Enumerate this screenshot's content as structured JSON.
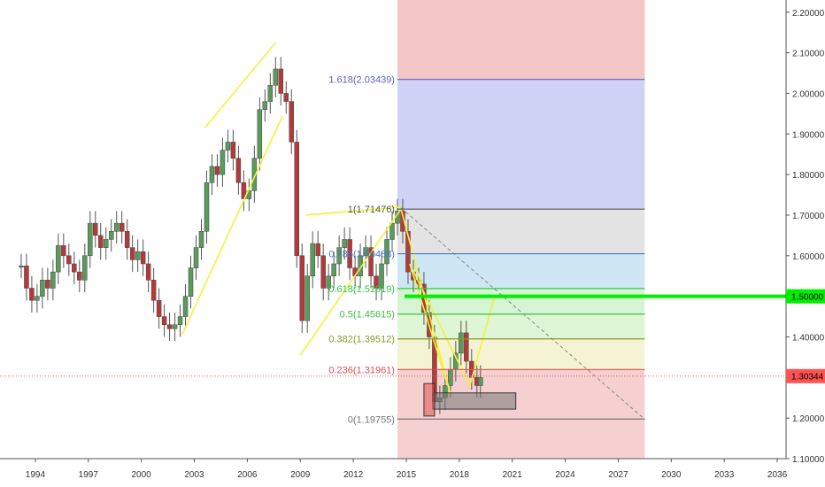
{
  "chart_data": {
    "type": "candlestick",
    "x_axis": {
      "ticks": [
        "1994",
        "1997",
        "2000",
        "2003",
        "2006",
        "2009",
        "2012",
        "2015",
        "2018",
        "2021",
        "2024",
        "2027",
        "2030",
        "2033",
        "2036"
      ],
      "range": [
        1992.0,
        2036.5
      ]
    },
    "y_axis": {
      "ticks": [
        "1.10000",
        "1.20000",
        "1.30000",
        "1.40000",
        "1.50000",
        "1.60000",
        "1.70000",
        "1.80000",
        "1.90000",
        "2.00000",
        "2.10000",
        "2.20000"
      ],
      "range": [
        1.1,
        2.23
      ]
    },
    "price_labels": [
      {
        "value": "1.50000",
        "num": 1.5,
        "color": "#00ee00",
        "text_color": "#000000"
      },
      {
        "value": "1.30344",
        "num": 1.30344,
        "color": "#ff5252",
        "text_color": "#000000"
      }
    ],
    "fib_levels": [
      {
        "ratio": "1.618",
        "price": "2.03439",
        "num": 2.03439,
        "color": "#5b62c4"
      },
      {
        "ratio": "1",
        "price": "1.71476",
        "num": 1.71476,
        "color": "#555555"
      },
      {
        "ratio": "0.786",
        "price": "1.60488",
        "num": 1.60488,
        "color": "#4a73c4"
      },
      {
        "ratio": "0.618",
        "price": "1.51919",
        "num": 1.51919,
        "color": "#2ecc40"
      },
      {
        "ratio": "0.5",
        "price": "1.45615",
        "num": 1.45615,
        "color": "#44b944"
      },
      {
        "ratio": "0.382",
        "price": "1.39512",
        "num": 1.39512,
        "color": "#8a9a2a"
      },
      {
        "ratio": "0.236",
        "price": "1.31961",
        "num": 1.31961,
        "color": "#e05050"
      },
      {
        "ratio": "0",
        "price": "1.19755",
        "num": 1.19755,
        "color": "#777777"
      }
    ],
    "zones": [
      {
        "name": "red-top",
        "from": 2.03439,
        "to": 2.23,
        "color": "#f4c7c7"
      },
      {
        "name": "blue",
        "from": 1.71476,
        "to": 2.03439,
        "color": "#cfd2f4"
      },
      {
        "name": "grey",
        "from": 1.60488,
        "to": 1.71476,
        "color": "#e3e3e3"
      },
      {
        "name": "light-blue",
        "from": 1.51919,
        "to": 1.60488,
        "color": "#cfe6f4"
      },
      {
        "name": "light-green-1",
        "from": 1.45615,
        "to": 1.51919,
        "color": "#d4f4d4"
      },
      {
        "name": "light-green-2",
        "from": 1.39512,
        "to": 1.45615,
        "color": "#dff6d6"
      },
      {
        "name": "yellow",
        "from": 1.31961,
        "to": 1.39512,
        "color": "#f4f4d4"
      },
      {
        "name": "red-bottom",
        "from": 1.19755,
        "to": 1.31961,
        "color": "#f6d0d0"
      },
      {
        "name": "red-under",
        "from": 1.1,
        "to": 1.19755,
        "color": "#f6d0d0"
      }
    ],
    "fib_range": {
      "x_start": 2014.5,
      "x_end": 2028.5
    },
    "channel_lines": [
      [
        [
          2003.6,
          1.915
        ],
        [
          2007.6,
          2.125
        ]
      ],
      [
        [
          2002.3,
          1.405
        ],
        [
          2008.0,
          1.945
        ]
      ],
      [
        [
          2009.0,
          1.355
        ],
        [
          2014.7,
          1.715
        ]
      ],
      [
        [
          2009.3,
          1.7
        ],
        [
          2014.7,
          1.72
        ]
      ]
    ],
    "projection_path": [
      [
        2014.7,
        1.715
      ],
      [
        2017.5,
        1.26
      ],
      [
        2015.2,
        1.58
      ],
      [
        2018.6,
        1.28
      ],
      [
        2020.0,
        1.5
      ]
    ],
    "trend_dashed": [
      [
        2014.7,
        1.718
      ],
      [
        2028.5,
        1.197
      ]
    ],
    "boxes": [
      {
        "x0": 2016.5,
        "x1": 2021.2,
        "y0": 1.222,
        "y1": 1.262,
        "color": "#777777"
      },
      {
        "x0": 2016.0,
        "x1": 2016.6,
        "y0": 1.205,
        "y1": 1.285,
        "color": "#e05050"
      }
    ],
    "candles": [
      [
        1993.2,
        1.575
      ],
      [
        1993.5,
        1.52
      ],
      [
        1993.8,
        1.49
      ],
      [
        1994.1,
        1.5
      ],
      [
        1994.4,
        1.54
      ],
      [
        1994.7,
        1.52
      ],
      [
        1995.0,
        1.56
      ],
      [
        1995.3,
        1.625
      ],
      [
        1995.6,
        1.6
      ],
      [
        1995.9,
        1.58
      ],
      [
        1996.2,
        1.56
      ],
      [
        1996.5,
        1.54
      ],
      [
        1996.8,
        1.6
      ],
      [
        1997.1,
        1.68
      ],
      [
        1997.4,
        1.65
      ],
      [
        1997.7,
        1.62
      ],
      [
        1998.0,
        1.64
      ],
      [
        1998.3,
        1.66
      ],
      [
        1998.6,
        1.68
      ],
      [
        1998.9,
        1.66
      ],
      [
        1999.2,
        1.62
      ],
      [
        1999.5,
        1.59
      ],
      [
        1999.8,
        1.61
      ],
      [
        2000.1,
        1.58
      ],
      [
        2000.4,
        1.54
      ],
      [
        2000.7,
        1.49
      ],
      [
        2001.0,
        1.45
      ],
      [
        2001.3,
        1.43
      ],
      [
        2001.6,
        1.42
      ],
      [
        2001.9,
        1.43
      ],
      [
        2002.2,
        1.45
      ],
      [
        2002.5,
        1.5
      ],
      [
        2002.8,
        1.57
      ],
      [
        2003.1,
        1.62
      ],
      [
        2003.4,
        1.66
      ],
      [
        2003.7,
        1.78
      ],
      [
        2004.0,
        1.82
      ],
      [
        2004.3,
        1.8
      ],
      [
        2004.6,
        1.86
      ],
      [
        2004.9,
        1.88
      ],
      [
        2005.2,
        1.84
      ],
      [
        2005.5,
        1.78
      ],
      [
        2005.8,
        1.74
      ],
      [
        2006.1,
        1.76
      ],
      [
        2006.4,
        1.84
      ],
      [
        2006.7,
        1.96
      ],
      [
        2007.0,
        1.98
      ],
      [
        2007.3,
        2.02
      ],
      [
        2007.6,
        2.06
      ],
      [
        2007.9,
        2.0
      ],
      [
        2008.2,
        1.98
      ],
      [
        2008.5,
        1.88
      ],
      [
        2008.8,
        1.6
      ],
      [
        2009.1,
        1.44
      ],
      [
        2009.4,
        1.55
      ],
      [
        2009.7,
        1.63
      ],
      [
        2010.0,
        1.6
      ],
      [
        2010.3,
        1.52
      ],
      [
        2010.6,
        1.55
      ],
      [
        2010.9,
        1.58
      ],
      [
        2011.2,
        1.62
      ],
      [
        2011.5,
        1.64
      ],
      [
        2011.8,
        1.57
      ],
      [
        2012.1,
        1.55
      ],
      [
        2012.4,
        1.6
      ],
      [
        2012.7,
        1.62
      ],
      [
        2013.0,
        1.55
      ],
      [
        2013.3,
        1.52
      ],
      [
        2013.6,
        1.58
      ],
      [
        2013.9,
        1.64
      ],
      [
        2014.2,
        1.68
      ],
      [
        2014.5,
        1.71
      ],
      [
        2014.8,
        1.66
      ],
      [
        2015.1,
        1.56
      ],
      [
        2015.4,
        1.54
      ],
      [
        2015.7,
        1.53
      ],
      [
        2016.0,
        1.46
      ],
      [
        2016.3,
        1.4
      ],
      [
        2016.6,
        1.24
      ],
      [
        2016.9,
        1.25
      ],
      [
        2017.2,
        1.28
      ],
      [
        2017.5,
        1.32
      ],
      [
        2017.8,
        1.36
      ],
      [
        2018.1,
        1.41
      ],
      [
        2018.4,
        1.34
      ],
      [
        2018.7,
        1.3
      ],
      [
        2019.0,
        1.28
      ],
      [
        2019.2,
        1.3
      ]
    ]
  }
}
